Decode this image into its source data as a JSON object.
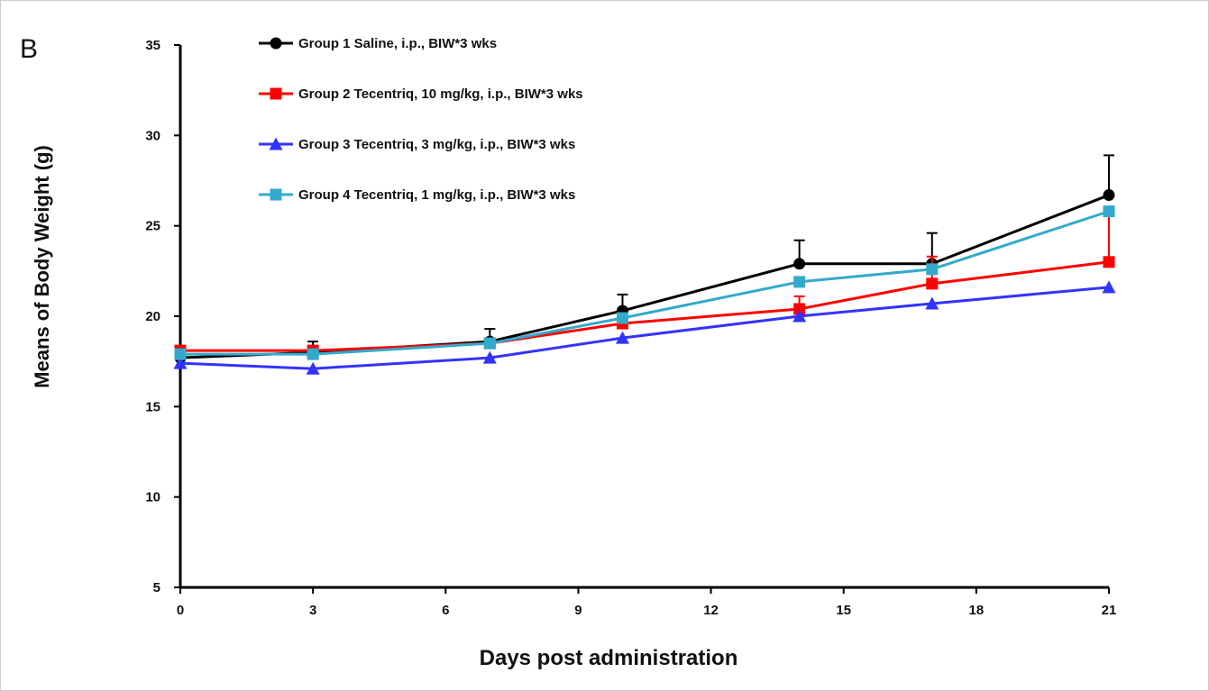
{
  "panel_label": "B",
  "chart_data": {
    "type": "line",
    "title": "",
    "xlabel": "Days post administration",
    "ylabel": "Means of Body Weight (g)",
    "xlim": [
      0,
      21
    ],
    "ylim": [
      5,
      35
    ],
    "xticks": [
      0,
      3,
      6,
      9,
      12,
      15,
      18,
      21
    ],
    "yticks": [
      5,
      10,
      15,
      20,
      25,
      30,
      35
    ],
    "grid": false,
    "legend_position": "top-center",
    "x": [
      0,
      3,
      7,
      10,
      14,
      17,
      21
    ],
    "series": [
      {
        "name": "Group 1 Saline, i.p., BIW*3 wks",
        "color": "#000000",
        "marker": "circle",
        "values": [
          17.7,
          18.0,
          18.6,
          20.3,
          22.9,
          22.9,
          26.7
        ],
        "error": [
          0.0,
          0.6,
          0.7,
          0.9,
          1.3,
          1.7,
          2.2
        ]
      },
      {
        "name": "Group 2 Tecentriq, 10 mg/kg, i.p., BIW*3 wks",
        "color": "#ff0000",
        "marker": "square",
        "values": [
          18.1,
          18.1,
          18.5,
          19.6,
          20.4,
          21.8,
          23.0
        ],
        "error": [
          0.0,
          0.0,
          0.0,
          0.0,
          0.7,
          1.5,
          2.8
        ]
      },
      {
        "name": "Group 3 Tecentriq, 3 mg/kg, i.p., BIW*3 wks",
        "color": "#3333ff",
        "marker": "triangle",
        "values": [
          17.4,
          17.1,
          17.7,
          18.8,
          20.0,
          20.7,
          21.6
        ],
        "error": [
          0.0,
          0.0,
          0.0,
          0.0,
          0.0,
          0.0,
          0.0
        ]
      },
      {
        "name": "Group 4 Tecentriq, 1 mg/kg, i.p., BIW*3 wks",
        "color": "#33aacc",
        "marker": "square",
        "values": [
          17.9,
          17.9,
          18.5,
          19.9,
          21.9,
          22.6,
          25.8
        ],
        "error": [
          0.0,
          0.0,
          0.0,
          0.0,
          0.0,
          0.0,
          0.0
        ]
      }
    ]
  }
}
